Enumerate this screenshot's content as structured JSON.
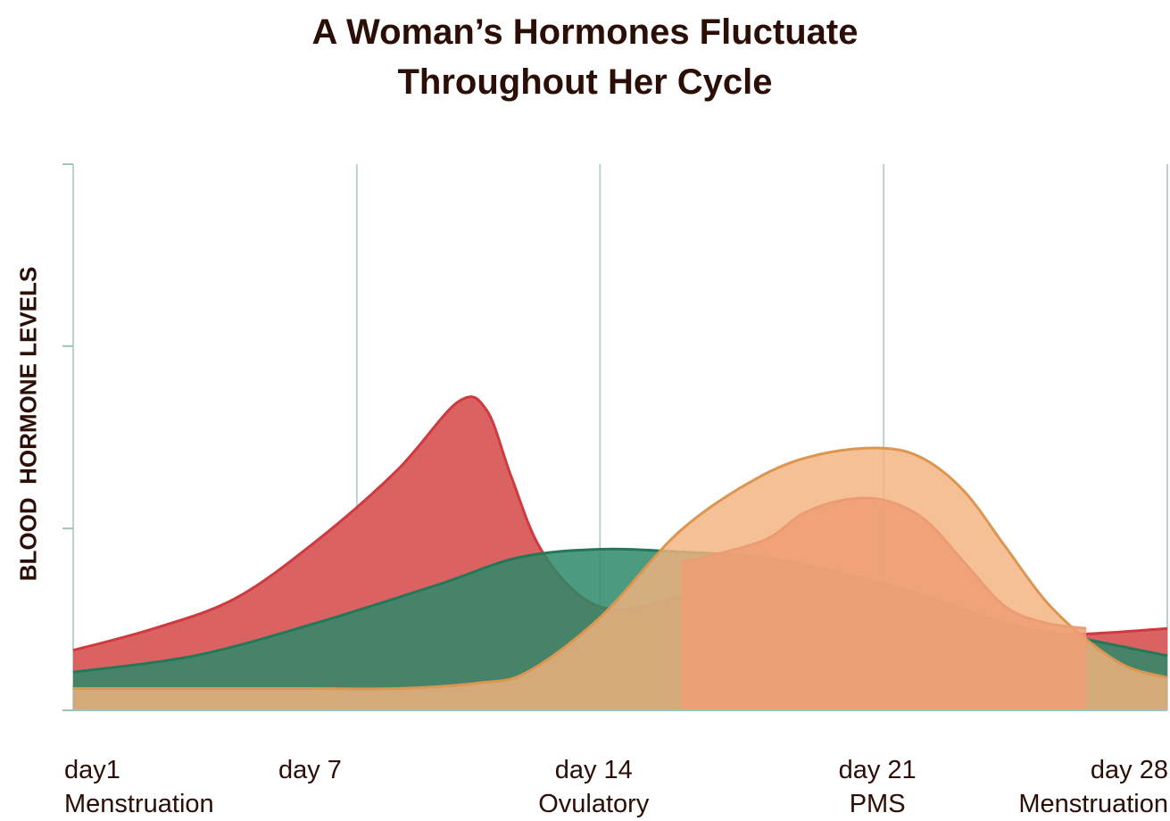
{
  "chart_data": {
    "type": "area",
    "title": [
      "A Woman’s Hormones Fluctuate",
      "Throughout Her Cycle"
    ],
    "ylabel": "BLOOD  HORMONE LEVELS",
    "xlabel": "",
    "xlim": [
      1,
      28
    ],
    "ylim": [
      0,
      100
    ],
    "grid": true,
    "legend": "none",
    "x_ticks": [
      {
        "x": 1,
        "lines": [
          "day1",
          "Menstruation"
        ],
        "align": "left"
      },
      {
        "x": 7,
        "lines": [
          "day 7"
        ],
        "align": "center"
      },
      {
        "x": 14,
        "lines": [
          "day 14",
          "Ovulatory"
        ],
        "align": "center"
      },
      {
        "x": 21,
        "lines": [
          "day 21",
          "PMS"
        ],
        "align": "center"
      },
      {
        "x": 28,
        "lines": [
          "day 28",
          "Menstruation"
        ],
        "align": "right"
      }
    ],
    "grid_x": [
      1,
      8,
      14,
      21,
      28
    ],
    "y_ticks": [
      0,
      33.3,
      66.7,
      100
    ],
    "series": [
      {
        "color": "#d95a5a",
        "stroke": "#cf3a3e",
        "opacity": 0.95,
        "x": [
          1,
          3,
          5,
          7,
          9,
          10.5,
          11.2,
          11.8,
          12.5,
          13.5,
          14.5,
          16,
          18,
          20,
          22,
          24,
          26,
          28
        ],
        "y": [
          11,
          15,
          20.5,
          31,
          44,
          56.5,
          55,
          43,
          30,
          21,
          18.5,
          21,
          26.5,
          22,
          15,
          14,
          14,
          15
        ]
      },
      {
        "color": "#2d8a6a",
        "stroke": "#23785a",
        "opacity": 0.85,
        "x": [
          1,
          4,
          7,
          10,
          12,
          14,
          16,
          18,
          20,
          22,
          24,
          26,
          28
        ],
        "y": [
          7,
          10,
          16,
          23,
          28,
          29.5,
          29,
          28,
          25,
          21,
          16,
          13,
          10
        ]
      },
      {
        "color": "#f3b27f",
        "stroke": "#dc9650",
        "opacity": 0.82,
        "x": [
          1,
          3,
          5,
          7,
          9,
          11,
          12.2,
          14,
          16,
          18,
          19.5,
          21,
          22,
          23,
          24,
          25,
          26,
          27,
          28
        ],
        "y": [
          4,
          4,
          4,
          4,
          4,
          5,
          7,
          17,
          33,
          43,
          47,
          48,
          46,
          40,
          30,
          20,
          13,
          8,
          6
        ]
      },
      {
        "color": "#ee9d74",
        "stroke": "#ec9c72",
        "opacity": 0.85,
        "x": [
          16,
          18,
          19,
          20,
          21,
          22,
          23,
          24,
          25,
          26
        ],
        "y": [
          27,
          31,
          36,
          38.5,
          38.5,
          35,
          27,
          19,
          16,
          15
        ]
      }
    ]
  }
}
